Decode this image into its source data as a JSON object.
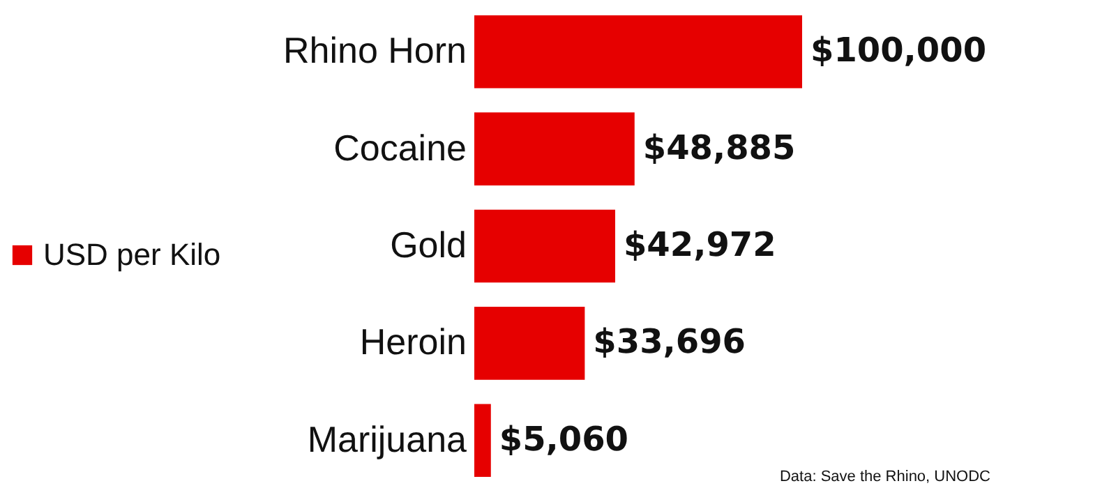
{
  "chart_data": {
    "type": "bar",
    "orientation": "horizontal",
    "categories": [
      "Rhino Horn",
      "Cocaine",
      "Gold",
      "Heroin",
      "Marijuana"
    ],
    "series": [
      {
        "name": "USD per Kilo",
        "color": "#e60000",
        "values": [
          100000,
          48885,
          42972,
          33696,
          5060
        ],
        "value_labels": [
          "$100,000",
          "$48,885",
          "$42,972",
          "$33,696",
          "$5,060"
        ]
      }
    ],
    "legend": "left",
    "annotations": [
      "Data: Save the Rhino, UNODC"
    ]
  }
}
